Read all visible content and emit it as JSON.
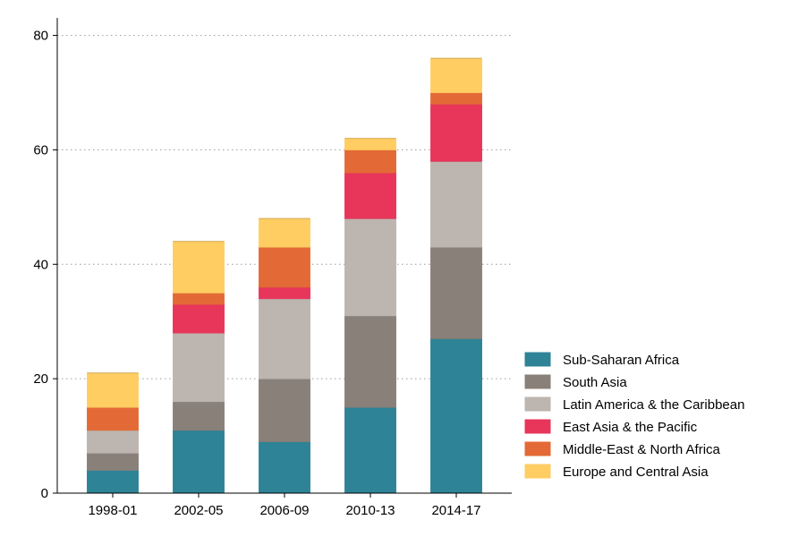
{
  "chart_data": {
    "type": "bar",
    "stacked": true,
    "title": "",
    "xlabel": "",
    "ylabel": "",
    "ylim": [
      0,
      84
    ],
    "yticks": [
      0,
      20,
      40,
      60,
      80
    ],
    "grid": true,
    "legend_position": "bottom-right",
    "categories": [
      "1998-01",
      "2002-05",
      "2006-09",
      "2010-13",
      "2014-17"
    ],
    "series": [
      {
        "name": "Sub-Saharan Africa",
        "color": "#2E8396",
        "values": [
          4,
          11,
          9,
          15,
          27
        ]
      },
      {
        "name": "South Asia",
        "color": "#898079",
        "values": [
          3,
          5,
          11,
          16,
          16
        ]
      },
      {
        "name": "Latin America & the Caribbean",
        "color": "#BDB5AF",
        "values": [
          4,
          12,
          14,
          17,
          15
        ]
      },
      {
        "name": "East Asia & the Pacific",
        "color": "#E8355A",
        "values": [
          0,
          5,
          2,
          8,
          10
        ]
      },
      {
        "name": "Middle-East & North Africa",
        "color": "#E36A36",
        "values": [
          4,
          2,
          7,
          4,
          2
        ]
      },
      {
        "name": "Europe and Central Asia",
        "color": "#FFCD62",
        "values": [
          6,
          9,
          5,
          2,
          6
        ]
      }
    ]
  }
}
